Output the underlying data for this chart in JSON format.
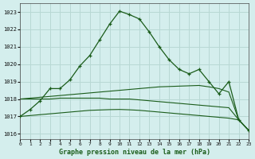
{
  "background_color": "#d4eeed",
  "grid_color": "#b8d8d4",
  "line_color_dark": "#1a5c1a",
  "line_color_med": "#2d7a2d",
  "title": "Graphe pression niveau de la mer (hPa)",
  "xlim": [
    0,
    23
  ],
  "ylim": [
    1015.7,
    1023.5
  ],
  "yticks": [
    1016,
    1017,
    1018,
    1019,
    1020,
    1021,
    1022,
    1023
  ],
  "xticks": [
    0,
    1,
    2,
    3,
    4,
    5,
    6,
    7,
    8,
    9,
    10,
    11,
    12,
    13,
    14,
    15,
    16,
    17,
    18,
    19,
    20,
    21,
    22,
    23
  ],
  "hours": [
    0,
    1,
    2,
    3,
    4,
    5,
    6,
    7,
    8,
    9,
    10,
    11,
    12,
    13,
    14,
    15,
    16,
    17,
    18,
    19,
    20,
    21,
    22,
    23
  ],
  "curve_main": [
    1017.0,
    1017.4,
    1017.9,
    1018.6,
    1018.6,
    1019.1,
    1019.9,
    1020.5,
    1021.4,
    1022.3,
    1023.05,
    1022.85,
    1022.6,
    1021.85,
    1021.0,
    1020.25,
    1019.7,
    1019.45,
    1019.7,
    1019.0,
    1018.3,
    1019.0,
    1016.8,
    1016.2
  ],
  "curve_ref1": [
    1018.0,
    1018.05,
    1018.1,
    1018.15,
    1018.2,
    1018.25,
    1018.3,
    1018.35,
    1018.4,
    1018.45,
    1018.5,
    1018.55,
    1018.6,
    1018.65,
    1018.7,
    1018.72,
    1018.74,
    1018.76,
    1018.78,
    1018.7,
    1018.6,
    1018.4,
    1016.8,
    1016.2
  ],
  "curve_ref2": [
    1018.0,
    1018.0,
    1018.0,
    1018.0,
    1018.05,
    1018.05,
    1018.05,
    1018.05,
    1018.05,
    1018.0,
    1018.0,
    1018.0,
    1017.95,
    1017.9,
    1017.85,
    1017.8,
    1017.75,
    1017.7,
    1017.65,
    1017.6,
    1017.55,
    1017.5,
    1016.8,
    1016.2
  ],
  "curve_ref3": [
    1017.0,
    1017.05,
    1017.1,
    1017.15,
    1017.2,
    1017.25,
    1017.3,
    1017.35,
    1017.37,
    1017.39,
    1017.4,
    1017.38,
    1017.35,
    1017.3,
    1017.25,
    1017.2,
    1017.15,
    1017.1,
    1017.05,
    1017.0,
    1016.95,
    1016.9,
    1016.8,
    1016.2
  ]
}
